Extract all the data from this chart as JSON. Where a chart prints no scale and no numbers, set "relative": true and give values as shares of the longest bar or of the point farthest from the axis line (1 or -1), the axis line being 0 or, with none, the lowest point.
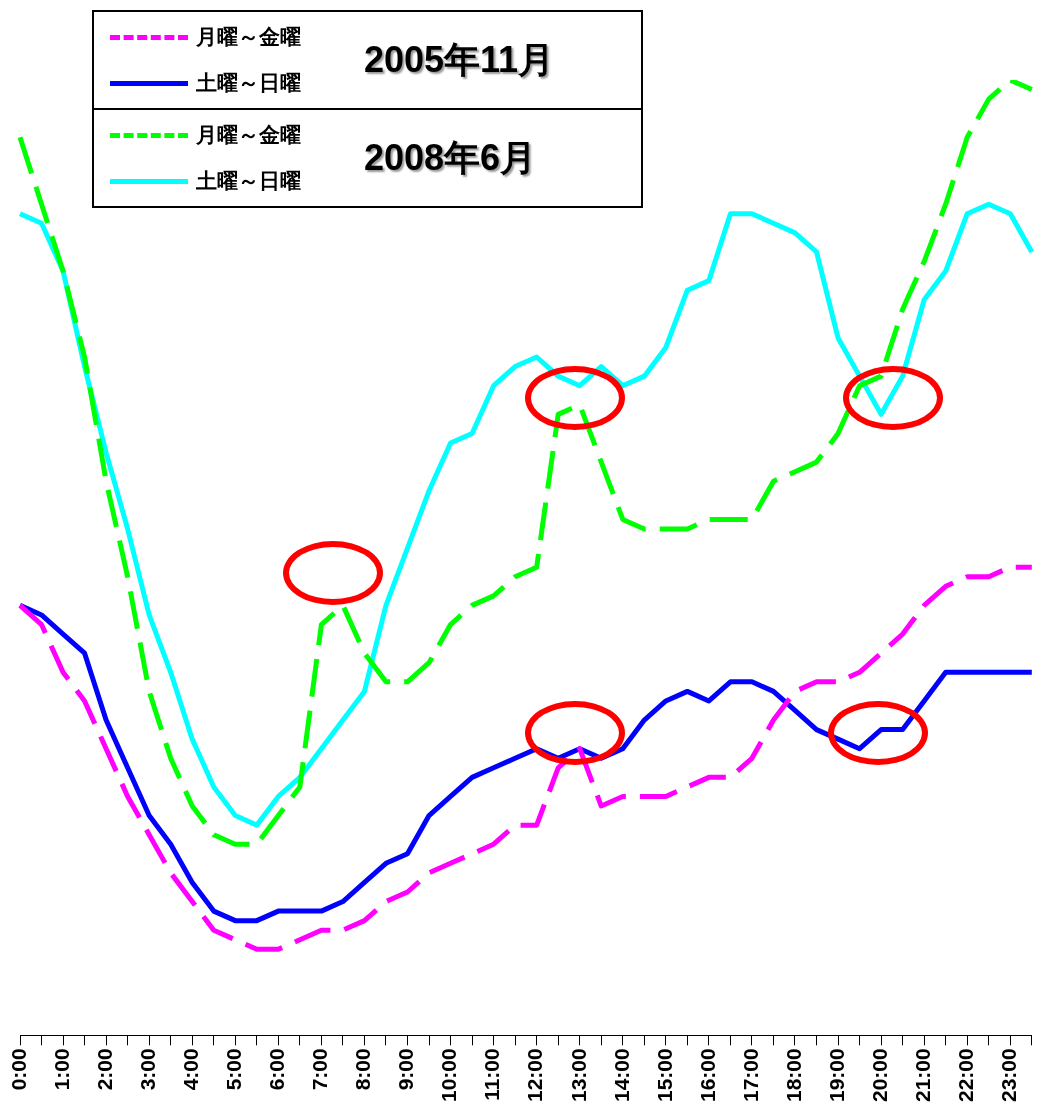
{
  "chart_data": {
    "type": "line",
    "relative": true,
    "legend": "top left",
    "annotations": [
      "2005年11月",
      "2008年6月"
    ],
    "categories": [
      "0:00",
      null,
      "1:00",
      null,
      "2:00",
      null,
      "3:00",
      null,
      "4:00",
      null,
      "5:00",
      null,
      "6:00",
      null,
      "7:00",
      null,
      "8:00",
      null,
      "9:00",
      null,
      "10:00",
      null,
      "11:00",
      null,
      "12:00",
      null,
      "13:00",
      null,
      "14:00",
      null,
      "15:00",
      null,
      "16:00",
      null,
      "17:00",
      null,
      "18:00",
      null,
      "19:00",
      null,
      "20:00",
      null,
      "21:00",
      null,
      "22:00",
      null,
      "23:00",
      null
    ],
    "series": [
      {
        "name": "月曜～金曜",
        "color": "#ff00ff",
        "line_style": "dashed",
        "values": [
          0.45,
          0.43,
          0.38,
          0.35,
          0.3,
          0.25,
          0.21,
          0.17,
          0.14,
          0.11,
          0.1,
          0.09,
          0.09,
          0.1,
          0.11,
          0.11,
          0.12,
          0.14,
          0.15,
          0.17,
          0.18,
          0.19,
          0.2,
          0.22,
          0.22,
          0.28,
          0.3,
          0.24,
          0.25,
          0.25,
          0.25,
          0.26,
          0.27,
          0.27,
          0.29,
          0.33,
          0.36,
          0.37,
          0.37,
          0.38,
          0.4,
          0.42,
          0.45,
          0.47,
          0.48,
          0.48,
          0.49,
          0.49
        ]
      },
      {
        "name": "土曜～日曜",
        "color": "#0000ff",
        "line_style": "solid",
        "values": [
          0.45,
          0.44,
          0.42,
          0.4,
          0.33,
          0.28,
          0.23,
          0.2,
          0.16,
          0.13,
          0.12,
          0.12,
          0.13,
          0.13,
          0.13,
          0.14,
          0.16,
          0.18,
          0.19,
          0.23,
          0.25,
          0.27,
          0.28,
          0.29,
          0.3,
          0.29,
          0.3,
          0.29,
          0.3,
          0.33,
          0.35,
          0.36,
          0.35,
          0.37,
          0.37,
          0.36,
          0.34,
          0.32,
          0.31,
          0.3,
          0.32,
          0.32,
          0.35,
          0.38,
          0.38,
          0.38,
          0.38,
          0.38
        ]
      },
      {
        "name": "月曜～金曜",
        "color": "#00ff00",
        "line_style": "dashed",
        "values": [
          0.94,
          0.87,
          0.8,
          0.71,
          0.58,
          0.48,
          0.36,
          0.29,
          0.24,
          0.21,
          0.2,
          0.2,
          0.23,
          0.26,
          0.43,
          0.45,
          0.4,
          0.37,
          0.37,
          0.39,
          0.43,
          0.45,
          0.46,
          0.48,
          0.49,
          0.65,
          0.66,
          0.6,
          0.54,
          0.53,
          0.53,
          0.53,
          0.54,
          0.54,
          0.54,
          0.58,
          0.59,
          0.6,
          0.63,
          0.68,
          0.69,
          0.76,
          0.81,
          0.87,
          0.94,
          0.98,
          1.0,
          0.99
        ]
      },
      {
        "name": "土曜～日曜",
        "color": "#00ffff",
        "line_style": "solid",
        "values": [
          0.86,
          0.85,
          0.8,
          0.7,
          0.61,
          0.53,
          0.44,
          0.38,
          0.31,
          0.26,
          0.23,
          0.22,
          0.25,
          0.27,
          0.3,
          0.33,
          0.36,
          0.45,
          0.51,
          0.57,
          0.62,
          0.63,
          0.68,
          0.7,
          0.71,
          0.69,
          0.68,
          0.7,
          0.68,
          0.69,
          0.72,
          0.78,
          0.79,
          0.86,
          0.86,
          0.85,
          0.84,
          0.82,
          0.73,
          0.69,
          0.65,
          0.69,
          0.77,
          0.8,
          0.86,
          0.87,
          0.86,
          0.82
        ]
      }
    ]
  }
}
